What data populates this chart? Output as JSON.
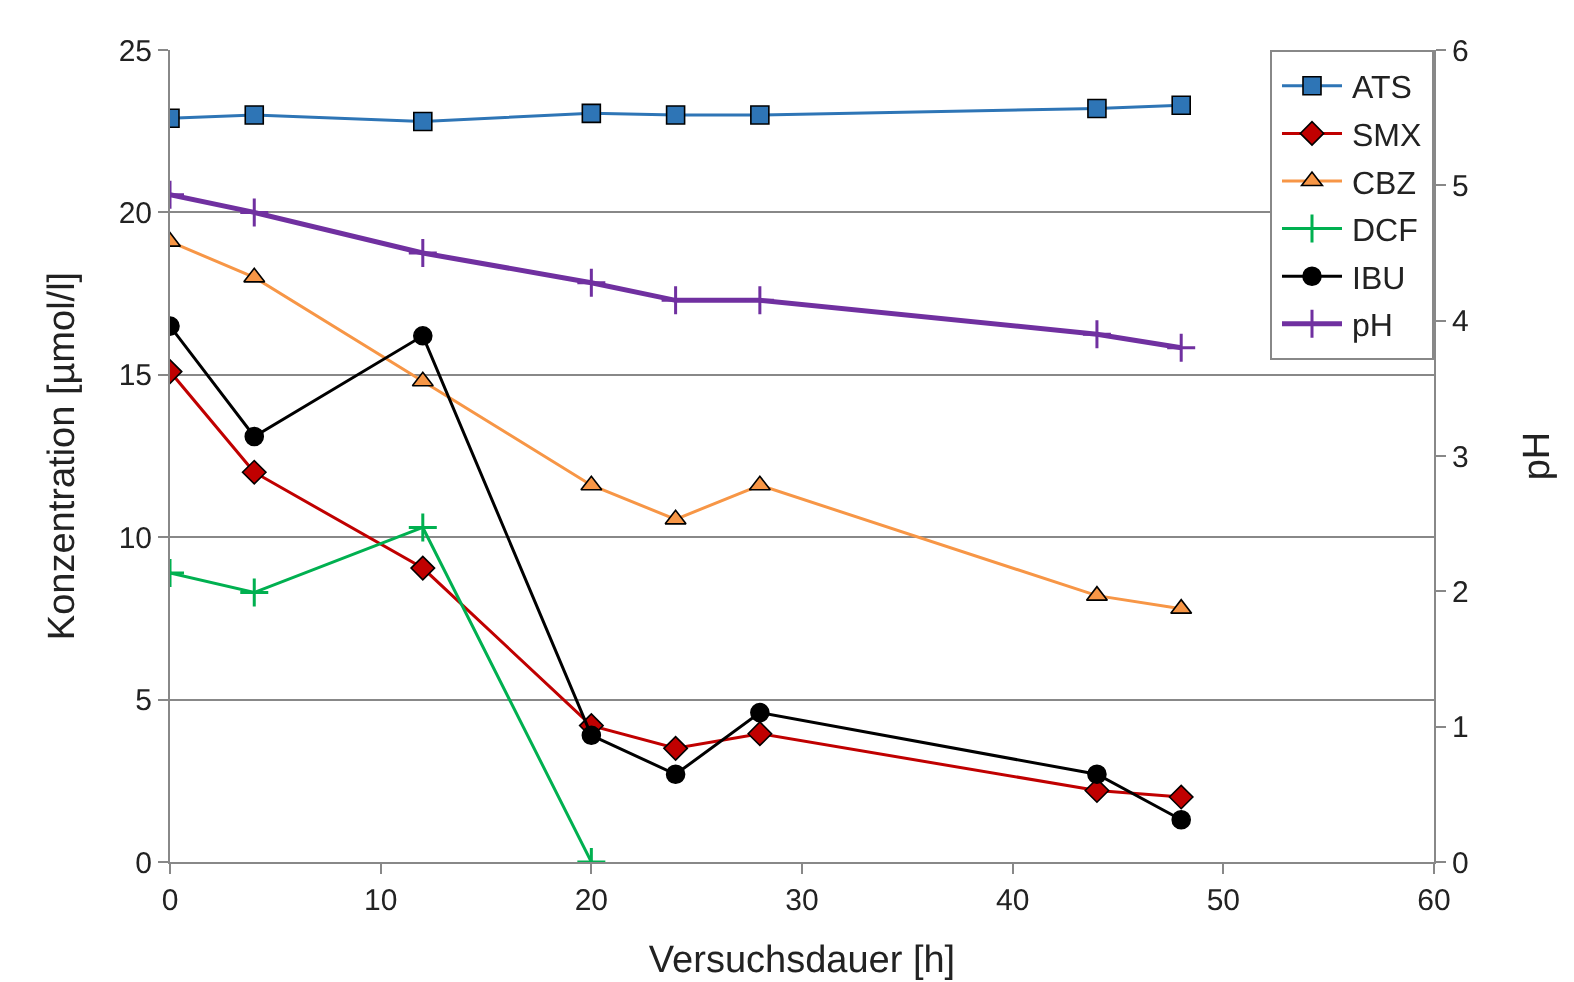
{
  "chart_data": {
    "type": "line",
    "xlabel": "Versuchsdauer [h]",
    "ylabel": "Konzentration [µmol/l]",
    "y2label": "pH",
    "x": [
      0,
      4,
      12,
      20,
      24,
      28,
      44,
      48
    ],
    "xlim": [
      0,
      60
    ],
    "xticks": [
      0,
      10,
      20,
      30,
      40,
      50,
      60
    ],
    "ylim": [
      0,
      25
    ],
    "yticks": [
      0,
      5,
      10,
      15,
      20,
      25
    ],
    "y2lim": [
      0,
      6
    ],
    "y2ticks": [
      0,
      1,
      2,
      3,
      4,
      5,
      6
    ],
    "grid": "y",
    "legend": "top right",
    "line_style": "solid",
    "series": [
      {
        "name": "ATS",
        "color": "#2e75b6",
        "marker": "square",
        "values": [
          22.9,
          23.0,
          22.8,
          23.05,
          23.0,
          23.0,
          23.2,
          23.3
        ]
      },
      {
        "name": "SMX",
        "color": "#c00000",
        "marker": "diamond",
        "values": [
          15.1,
          12.0,
          9.05,
          4.2,
          3.5,
          3.95,
          2.2,
          2.0
        ]
      },
      {
        "name": "CBZ",
        "color": "#f79646",
        "marker": "triangle",
        "values": [
          19.1,
          18.0,
          14.8,
          11.6,
          10.55,
          11.6,
          8.2,
          7.8
        ]
      },
      {
        "name": "DCF",
        "color": "#00b050",
        "marker": "cross",
        "values": [
          8.9,
          8.3,
          10.3,
          0,
          null,
          null,
          null,
          null
        ]
      },
      {
        "name": "IBU",
        "color": "#000000",
        "marker": "circle",
        "values": [
          16.5,
          13.1,
          16.2,
          3.9,
          2.7,
          4.6,
          2.7,
          1.3
        ]
      },
      {
        "name": "pH",
        "color": "#7030a0",
        "marker": "cross",
        "axis": "y2",
        "values": [
          4.93,
          4.8,
          4.5,
          4.28,
          4.15,
          4.15,
          3.9,
          3.8
        ]
      }
    ]
  }
}
